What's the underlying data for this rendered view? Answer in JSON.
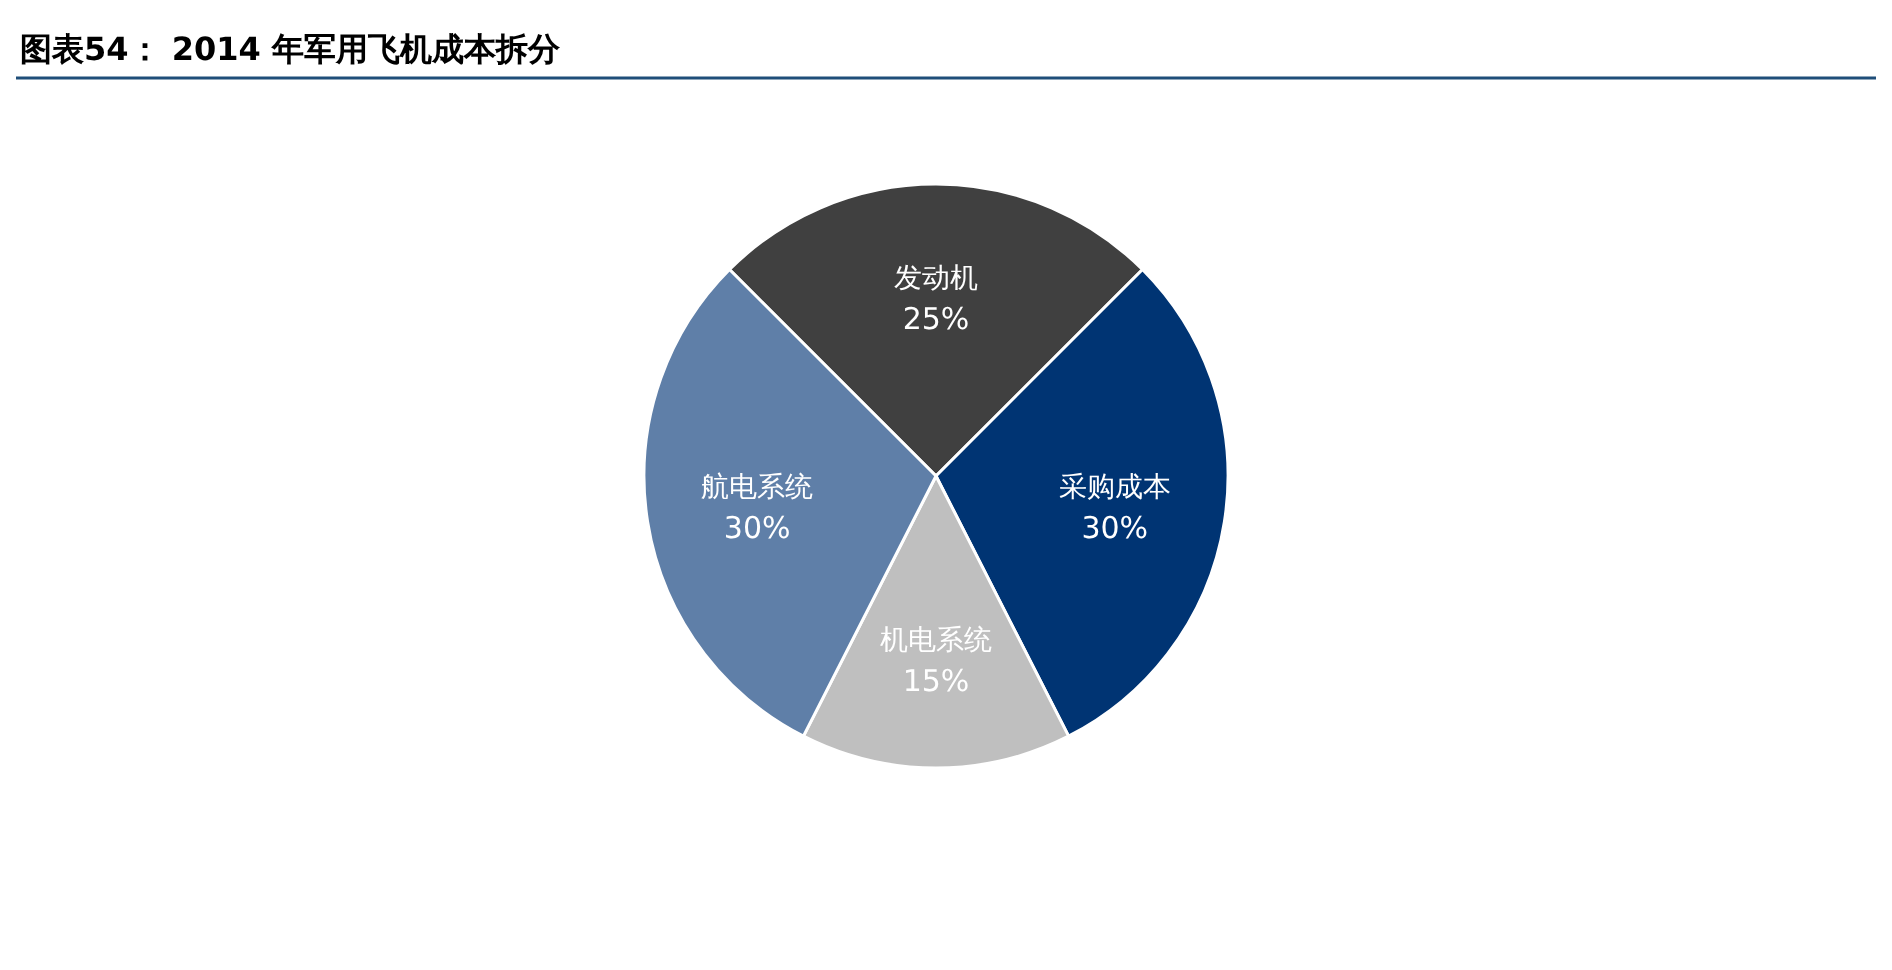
{
  "chart_data": {
    "type": "pie",
    "title": "图表54： 2014 年军用飞机成本拆分",
    "categories": [
      "发动机",
      "采购成本",
      "机电系统",
      "航电系统"
    ],
    "values": [
      25,
      30,
      15,
      30
    ],
    "colors": [
      "#404040",
      "#003473",
      "#bfbfbf",
      "#5f7fa8"
    ],
    "value_labels": [
      "25%",
      "30%",
      "15%",
      "30%"
    ]
  }
}
